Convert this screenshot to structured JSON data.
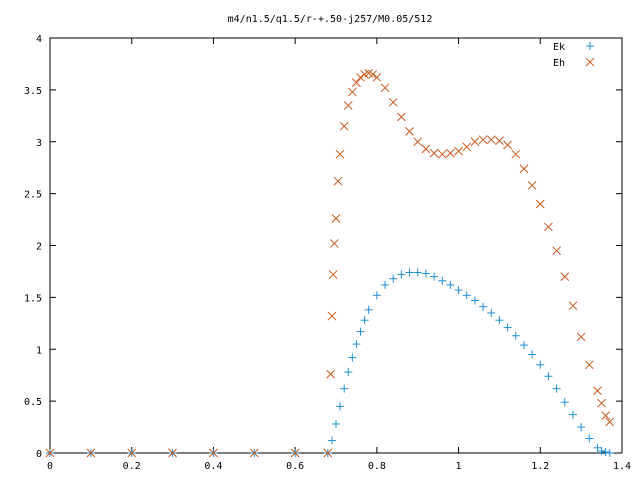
{
  "chart_data": {
    "type": "scatter",
    "title": "m4/n1.5/q1.5/r-+.50-j257/M0.05/512",
    "xlabel": "",
    "ylabel": "",
    "xlim": [
      0,
      1.4
    ],
    "ylim": [
      0,
      4
    ],
    "xticks": [
      "0",
      "0.2",
      "0.4",
      "0.6",
      "0.8",
      "1",
      "1.2",
      "1.4"
    ],
    "yticks": [
      "0",
      "0.5",
      "1",
      "1.5",
      "2",
      "2.5",
      "3",
      "3.5",
      "4"
    ],
    "grid": false,
    "legend_position": "top-right",
    "series": [
      {
        "name": "Ek",
        "marker": "plus",
        "color": "#1f8fd6",
        "x": [
          0.0,
          0.1,
          0.2,
          0.3,
          0.4,
          0.5,
          0.6,
          0.68,
          0.69,
          0.7,
          0.71,
          0.72,
          0.73,
          0.74,
          0.75,
          0.76,
          0.77,
          0.78,
          0.8,
          0.82,
          0.84,
          0.86,
          0.88,
          0.9,
          0.92,
          0.94,
          0.96,
          0.98,
          1.0,
          1.02,
          1.04,
          1.06,
          1.08,
          1.1,
          1.12,
          1.14,
          1.16,
          1.18,
          1.2,
          1.22,
          1.24,
          1.26,
          1.28,
          1.3,
          1.32,
          1.34,
          1.35,
          1.36,
          1.37
        ],
        "y": [
          0.0,
          0.0,
          0.0,
          0.0,
          0.0,
          0.0,
          0.0,
          0.0,
          0.12,
          0.28,
          0.45,
          0.62,
          0.78,
          0.92,
          1.05,
          1.17,
          1.28,
          1.38,
          1.52,
          1.62,
          1.68,
          1.72,
          1.74,
          1.74,
          1.73,
          1.7,
          1.66,
          1.62,
          1.57,
          1.52,
          1.47,
          1.41,
          1.35,
          1.28,
          1.21,
          1.13,
          1.04,
          0.95,
          0.85,
          0.74,
          0.62,
          0.49,
          0.37,
          0.25,
          0.14,
          0.05,
          0.02,
          0.01,
          0.0
        ]
      },
      {
        "name": "Eh",
        "marker": "cross",
        "color": "#c8581b",
        "x": [
          0.0,
          0.1,
          0.2,
          0.3,
          0.4,
          0.5,
          0.6,
          0.68,
          0.687,
          0.69,
          0.693,
          0.696,
          0.7,
          0.705,
          0.71,
          0.72,
          0.73,
          0.74,
          0.75,
          0.76,
          0.77,
          0.78,
          0.79,
          0.8,
          0.82,
          0.84,
          0.86,
          0.88,
          0.9,
          0.92,
          0.94,
          0.96,
          0.98,
          1.0,
          1.02,
          1.04,
          1.06,
          1.08,
          1.1,
          1.12,
          1.14,
          1.16,
          1.18,
          1.2,
          1.22,
          1.24,
          1.26,
          1.28,
          1.3,
          1.32,
          1.34,
          1.35,
          1.36,
          1.37
        ],
        "y": [
          0.0,
          0.0,
          0.0,
          0.0,
          0.0,
          0.0,
          0.0,
          0.0,
          0.76,
          1.32,
          1.72,
          2.02,
          2.26,
          2.62,
          2.88,
          3.15,
          3.35,
          3.48,
          3.57,
          3.62,
          3.65,
          3.66,
          3.65,
          3.62,
          3.52,
          3.38,
          3.24,
          3.1,
          3.0,
          2.93,
          2.89,
          2.88,
          2.89,
          2.91,
          2.95,
          3.0,
          3.02,
          3.02,
          3.01,
          2.97,
          2.88,
          2.74,
          2.58,
          2.4,
          2.18,
          1.95,
          1.7,
          1.42,
          1.12,
          0.85,
          0.6,
          0.48,
          0.36,
          0.3
        ]
      }
    ]
  }
}
